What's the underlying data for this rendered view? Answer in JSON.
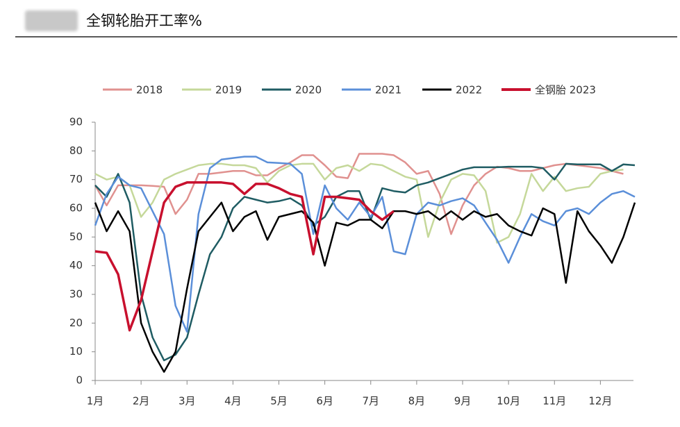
{
  "chart_data": {
    "type": "line",
    "title": "全钢轮胎开工率%",
    "x": [
      1,
      1.25,
      1.5,
      1.75,
      2,
      2.25,
      2.5,
      2.75,
      3,
      3.25,
      3.5,
      3.75,
      4,
      4.25,
      4.5,
      4.75,
      5,
      5.25,
      5.5,
      5.75,
      6,
      6.25,
      6.5,
      6.75,
      7,
      7.25,
      7.5,
      7.75,
      8,
      8.25,
      8.5,
      8.75,
      9,
      9.25,
      9.5,
      9.75,
      10,
      10.25,
      10.5,
      10.75,
      11,
      11.25,
      11.5,
      11.75,
      12,
      12.25,
      12.5,
      12.75
    ],
    "xlim": [
      1,
      12.72
    ],
    "xticks": [
      {
        "value": 1,
        "label": "1月"
      },
      {
        "value": 2,
        "label": "2月"
      },
      {
        "value": 3,
        "label": "3月"
      },
      {
        "value": 4,
        "label": "4月"
      },
      {
        "value": 5,
        "label": "5月"
      },
      {
        "value": 6,
        "label": "6月"
      },
      {
        "value": 7,
        "label": "7月"
      },
      {
        "value": 8,
        "label": "8月"
      },
      {
        "value": 9,
        "label": "9月"
      },
      {
        "value": 10,
        "label": "10月"
      },
      {
        "value": 11,
        "label": "11月"
      },
      {
        "value": 12,
        "label": "12月"
      }
    ],
    "ylim": [
      0,
      90
    ],
    "yticks": [
      0,
      10,
      20,
      30,
      40,
      50,
      60,
      70,
      80,
      90
    ],
    "series": [
      {
        "name": "2018",
        "color": "#e0918f",
        "width": 2.5,
        "values": [
          68,
          61,
          68,
          68,
          68,
          67.8,
          67.5,
          58,
          63,
          72,
          72,
          72.5,
          73,
          73,
          71.5,
          71.5,
          74,
          76,
          78.5,
          78.5,
          75,
          71,
          70.5,
          79,
          79,
          79,
          78.5,
          76,
          72,
          73,
          65,
          51,
          61,
          68,
          72,
          74.5,
          74,
          73,
          73,
          74,
          75,
          75.5,
          75,
          74.5,
          74,
          73,
          72,
          null
        ]
      },
      {
        "name": "2019",
        "color": "#c5d89a",
        "width": 2.5,
        "values": [
          72,
          70,
          71,
          68,
          57,
          62,
          70,
          72,
          73.5,
          75,
          75.5,
          75.5,
          75,
          75,
          74,
          69,
          73,
          75,
          75.5,
          75.5,
          70,
          74,
          75,
          73,
          75.5,
          75,
          73,
          71,
          70,
          50,
          62,
          70,
          72,
          71.5,
          66,
          48,
          50,
          58,
          72,
          66,
          71,
          66,
          67,
          67.5,
          72,
          73,
          73.5,
          null
        ]
      },
      {
        "name": "2020",
        "color": "#1f5c63",
        "width": 2.5,
        "values": [
          68,
          64,
          72,
          62,
          30,
          15,
          7,
          9,
          15,
          30,
          44,
          50,
          60,
          64,
          63,
          62,
          62.5,
          63.5,
          61,
          54,
          57,
          64,
          66,
          66,
          56,
          67,
          66,
          65.5,
          68,
          69,
          70.5,
          72,
          73.5,
          74.3,
          74.3,
          74.3,
          74.5,
          74.5,
          74.5,
          74,
          70,
          75.5,
          75.3,
          75.3,
          75.3,
          73,
          75.3,
          75
        ]
      },
      {
        "name": "2021",
        "color": "#5b8fd9",
        "width": 2.5,
        "values": [
          54,
          65,
          71,
          68,
          67,
          59,
          51,
          26,
          17,
          58,
          74,
          77,
          77.5,
          78,
          78,
          76,
          75.8,
          75.5,
          72,
          51,
          68,
          60,
          56,
          62,
          57,
          64,
          45,
          44,
          58,
          62,
          61,
          62.5,
          63.5,
          61,
          55,
          49,
          41,
          50,
          58,
          55.5,
          54,
          59,
          60,
          58,
          62,
          65,
          66,
          64
        ]
      },
      {
        "name": "2022",
        "color": "#000000",
        "width": 2.5,
        "values": [
          62,
          52,
          59,
          52,
          20,
          10,
          3,
          10,
          32,
          52,
          57,
          62,
          52,
          57,
          59,
          49,
          57,
          58,
          59,
          55,
          40,
          55,
          54,
          56,
          56,
          53,
          59,
          59,
          58,
          59,
          56,
          59,
          56,
          59,
          57,
          58,
          54,
          52,
          50.5,
          60,
          58,
          34,
          59,
          52,
          47,
          41,
          50,
          62
        ]
      },
      {
        "name": "全钢胎 2023",
        "color": "#c8102e",
        "width": 3.5,
        "values": [
          45,
          44.5,
          37,
          17.5,
          28,
          45,
          62,
          67.5,
          69,
          69,
          69,
          69,
          68.5,
          65,
          68.5,
          68.5,
          67,
          65,
          64,
          44,
          64,
          64,
          63.5,
          63,
          59,
          56,
          59,
          null,
          null,
          null,
          null,
          null,
          null,
          null,
          null,
          null,
          null,
          null,
          null,
          null,
          null,
          null,
          null,
          null,
          null,
          null,
          null,
          null
        ]
      }
    ]
  }
}
